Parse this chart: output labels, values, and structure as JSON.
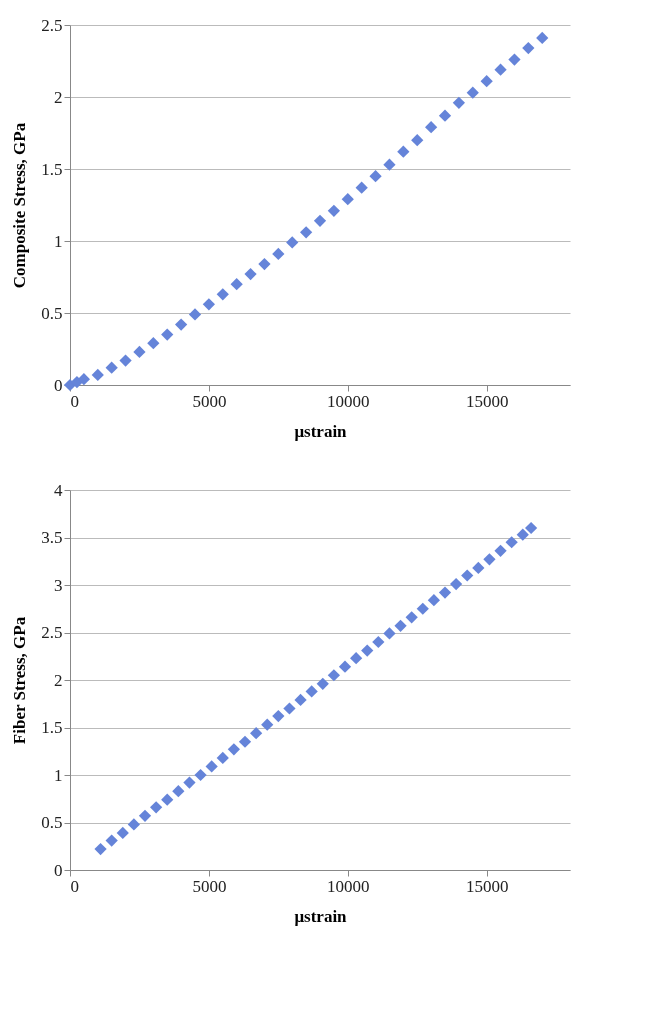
{
  "chart_data": [
    {
      "type": "scatter",
      "xlabel": "μstrain",
      "ylabel": "Composite Stress,  GPa",
      "marker": "diamond",
      "grid": "y",
      "xlim": [
        0,
        18000
      ],
      "xticks": [
        0,
        5000,
        10000,
        15000
      ],
      "ylim": [
        0,
        2.5
      ],
      "yticks": [
        0,
        0.5,
        1,
        1.5,
        2,
        2.5
      ],
      "x": [
        0,
        250,
        500,
        1000,
        1500,
        2000,
        2500,
        3000,
        3500,
        4000,
        4500,
        5000,
        5500,
        6000,
        6500,
        7000,
        7500,
        8000,
        8500,
        9000,
        9500,
        10000,
        10500,
        11000,
        11500,
        12000,
        12500,
        13000,
        13500,
        14000,
        14500,
        15000,
        15500,
        16000,
        16500,
        17000
      ],
      "series": [
        {
          "color": "#6584d9",
          "values": [
            0,
            0.02,
            0.04,
            0.07,
            0.12,
            0.17,
            0.23,
            0.29,
            0.35,
            0.42,
            0.49,
            0.56,
            0.63,
            0.7,
            0.77,
            0.84,
            0.91,
            0.99,
            1.06,
            1.14,
            1.21,
            1.29,
            1.37,
            1.45,
            1.53,
            1.62,
            1.7,
            1.79,
            1.87,
            1.96,
            2.03,
            2.11,
            2.19,
            2.26,
            2.34,
            2.41
          ]
        }
      ]
    },
    {
      "type": "scatter",
      "xlabel": "μstrain",
      "ylabel": "Fiber Stress, GPa",
      "marker": "diamond",
      "grid": "y",
      "xlim": [
        0,
        18000
      ],
      "xticks": [
        0,
        5000,
        10000,
        15000
      ],
      "ylim": [
        0,
        4
      ],
      "yticks": [
        0,
        0.5,
        1,
        1.5,
        2,
        2.5,
        3,
        3.5,
        4
      ],
      "x": [
        1100,
        1500,
        1900,
        2300,
        2700,
        3100,
        3500,
        3900,
        4300,
        4700,
        5100,
        5500,
        5900,
        6300,
        6700,
        7100,
        7500,
        7900,
        8300,
        8700,
        9100,
        9500,
        9900,
        10300,
        10700,
        11100,
        11500,
        11900,
        12300,
        12700,
        13100,
        13500,
        13900,
        14300,
        14700,
        15100,
        15500,
        15900,
        16300,
        16600
      ],
      "series": [
        {
          "color": "#6584d9",
          "values": [
            0.22,
            0.31,
            0.39,
            0.48,
            0.57,
            0.66,
            0.74,
            0.83,
            0.92,
            1.0,
            1.09,
            1.18,
            1.27,
            1.35,
            1.44,
            1.53,
            1.62,
            1.7,
            1.79,
            1.88,
            1.96,
            2.05,
            2.14,
            2.23,
            2.31,
            2.4,
            2.49,
            2.57,
            2.66,
            2.75,
            2.84,
            2.92,
            3.01,
            3.1,
            3.18,
            3.27,
            3.36,
            3.45,
            3.53,
            3.6
          ]
        }
      ]
    }
  ]
}
